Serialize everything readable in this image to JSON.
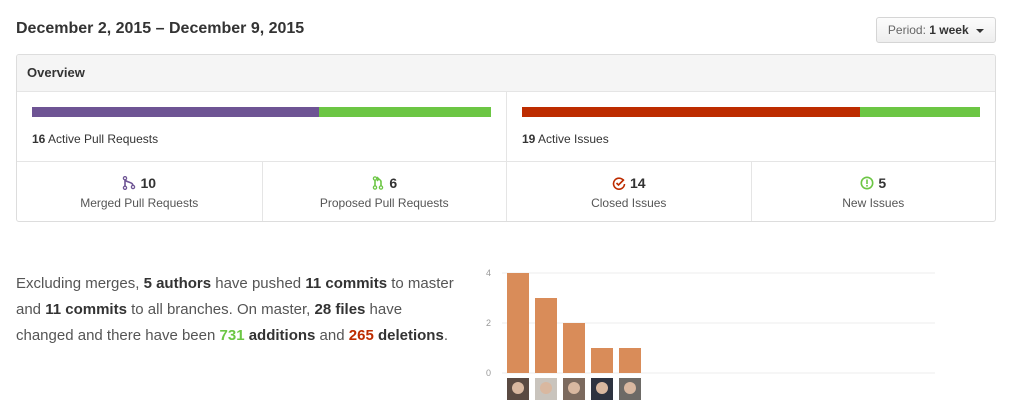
{
  "header": {
    "date_range": "December 2, 2015 – December 9, 2015",
    "period_label": "Period:",
    "period_value": "1 week"
  },
  "overview": {
    "title": "Overview",
    "pull_requests": {
      "active_count": "16",
      "active_label": "Active Pull Requests",
      "merged_fraction": 0.625,
      "merged_color": "#6e5494",
      "proposed_color": "#6cc644"
    },
    "issues": {
      "active_count": "19",
      "active_label": "Active Issues",
      "closed_fraction": 0.737,
      "closed_color": "#bd2c00",
      "new_color": "#6cc644"
    },
    "stats": [
      {
        "icon": "git-merge-icon",
        "count": "10",
        "label": "Merged Pull Requests",
        "color": "#6e5494"
      },
      {
        "icon": "git-pull-request-icon",
        "count": "6",
        "label": "Proposed Pull Requests",
        "color": "#6cc644"
      },
      {
        "icon": "issue-closed-icon",
        "count": "14",
        "label": "Closed Issues",
        "color": "#bd2c00"
      },
      {
        "icon": "issue-opened-icon",
        "count": "5",
        "label": "New Issues",
        "color": "#6cc644"
      }
    ]
  },
  "summary": {
    "t1": "Excluding merges, ",
    "authors": "5 authors",
    "t2": " have pushed ",
    "commits_master": "11 commits",
    "t3": " to master and ",
    "commits_all": "11 commits",
    "t4": " to all branches. On master, ",
    "files": "28 files",
    "t5": " have changed and there have been ",
    "additions_num": "731",
    "additions_word": "additions",
    "t6": " and ",
    "deletions_num": "265",
    "deletions_word": "deletions",
    "t7": "."
  },
  "chart_data": {
    "type": "bar",
    "categories": [
      "author-1",
      "author-2",
      "author-3",
      "author-4",
      "author-5"
    ],
    "values": [
      4,
      3,
      2,
      1,
      1
    ],
    "ylim": [
      0,
      4
    ],
    "yticks": [
      "0",
      "2",
      "4"
    ],
    "bar_color": "#d98c59",
    "grid": true
  }
}
